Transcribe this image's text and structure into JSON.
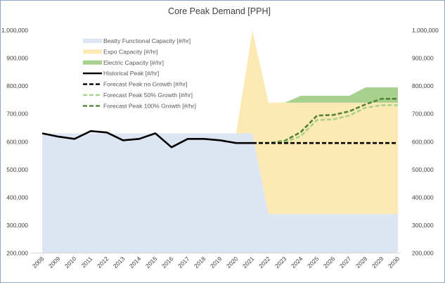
{
  "chart_data": {
    "type": "area",
    "title": "Core Peak Demand [PPH]",
    "xlabel": "",
    "ylabel": "",
    "ylim": [
      200000,
      1000000
    ],
    "yticks": [
      "200,000",
      "300,000",
      "400,000",
      "500,000",
      "600,000",
      "700,000",
      "800,000",
      "900,000",
      "1,000,000"
    ],
    "ytick_values": [
      200000,
      300000,
      400000,
      500000,
      600000,
      700000,
      800000,
      900000,
      1000000
    ],
    "secondary_y": true,
    "grid": false,
    "legend_position": "top-left",
    "categories": [
      "2008",
      "2009",
      "2010",
      "2011",
      "2012",
      "2013",
      "2014",
      "2015",
      "2016",
      "2017",
      "2018",
      "2019",
      "2020",
      "2021",
      "2022",
      "2023",
      "2024",
      "2025",
      "2026",
      "2027",
      "2028",
      "2029",
      "2030"
    ],
    "stacked_areas": [
      {
        "name": "Beatty Functional Capacity [#/hr]",
        "color": "#dce6f2",
        "values": [
          630000,
          630000,
          630000,
          630000,
          630000,
          630000,
          630000,
          630000,
          630000,
          630000,
          630000,
          630000,
          630000,
          630000,
          340000,
          340000,
          340000,
          340000,
          340000,
          340000,
          340000,
          340000,
          340000
        ]
      },
      {
        "name": "Expo Capacity [#/hr]",
        "color": "#fde9b4",
        "values": [
          null,
          null,
          null,
          null,
          null,
          null,
          null,
          null,
          null,
          null,
          null,
          null,
          0,
          370000,
          400000,
          400000,
          400000,
          400000,
          400000,
          400000,
          400000,
          400000,
          400000
        ]
      },
      {
        "name": "Electric  Capacity [#/hr]",
        "color": "#a9d18e",
        "values": [
          null,
          null,
          null,
          null,
          null,
          null,
          null,
          null,
          null,
          null,
          null,
          null,
          null,
          null,
          null,
          0,
          25000,
          25000,
          25000,
          25000,
          55000,
          55000,
          55000
        ]
      }
    ],
    "lines": [
      {
        "name": "Historical Peak [#/hr]",
        "color": "#000000",
        "dash": "solid",
        "values": [
          630000,
          618000,
          610000,
          638000,
          633000,
          605000,
          610000,
          630000,
          580000,
          610000,
          610000,
          605000,
          595000,
          595000,
          null,
          null,
          null,
          null,
          null,
          null,
          null,
          null,
          null
        ]
      },
      {
        "name": "Forecast Peak no Growth [#/hr]",
        "color": "#000000",
        "dash": "dashed",
        "values": [
          null,
          null,
          null,
          null,
          null,
          null,
          null,
          null,
          null,
          null,
          null,
          null,
          null,
          595000,
          595000,
          595000,
          595000,
          595000,
          595000,
          595000,
          595000,
          595000,
          595000
        ]
      },
      {
        "name": "Forecast Peak 50% Growth [#/hr]",
        "color": "#a9d18e",
        "dash": "dashed",
        "values": [
          null,
          null,
          null,
          null,
          null,
          null,
          null,
          null,
          null,
          null,
          null,
          null,
          null,
          595000,
          595000,
          598000,
          620000,
          678000,
          680000,
          694000,
          722000,
          731000,
          731000
        ]
      },
      {
        "name": "Forecast Peak 100% Growth [#/hr]",
        "color": "#548235",
        "dash": "dashed",
        "values": [
          null,
          null,
          null,
          null,
          null,
          null,
          null,
          null,
          null,
          null,
          null,
          null,
          null,
          595000,
          595000,
          603000,
          635000,
          694000,
          696000,
          709000,
          734000,
          754000,
          754000
        ]
      }
    ]
  }
}
